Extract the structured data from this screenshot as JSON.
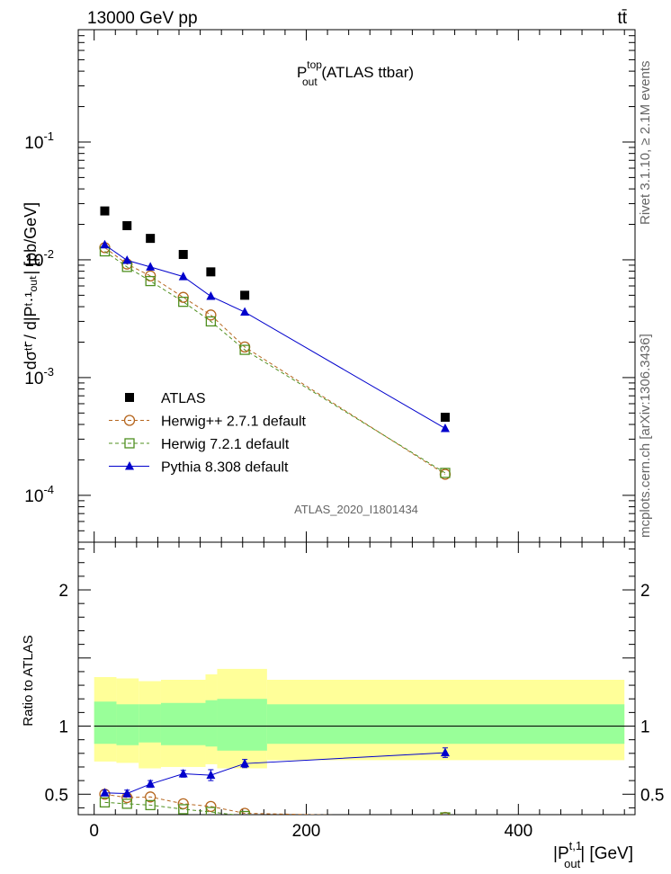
{
  "header": {
    "left": "13000 GeV pp",
    "right": "tt̄"
  },
  "side_text": {
    "rivet": "Rivet 3.1.10, ≥ 2.1M events",
    "mcplots": "mcplots.cern.ch [arXiv:1306.3436]"
  },
  "chart_data": [
    {
      "type": "scatter",
      "panel": "main",
      "title_main": "P",
      "title_sup": "top",
      "title_sub": "out",
      "title_rest": " (ATLAS ttbar)",
      "watermark": "ATLAS_2020_I1801434",
      "ylabel": "dσᵗᵗ̄ / d|Pᵗ·¹ₒᵤₜ| [pb/GeV]",
      "yscale": "log",
      "xlim": [
        -15,
        510
      ],
      "ylim": [
        4e-05,
        0.9
      ],
      "yticks": [
        {
          "v": 0.0001,
          "base": "10",
          "exp": "-4"
        },
        {
          "v": 0.001,
          "base": "10",
          "exp": "-3"
        },
        {
          "v": 0.01,
          "base": "10",
          "exp": "-2"
        },
        {
          "v": 0.1,
          "base": "10",
          "exp": "-1"
        }
      ],
      "legend_position": "lower-left",
      "series": [
        {
          "name": "ATLAS",
          "color": "#000000",
          "marker": "square",
          "x": [
            10,
            31,
            53,
            84,
            110,
            142,
            331
          ],
          "y": [
            0.026,
            0.0195,
            0.0152,
            0.0111,
            0.0079,
            0.005,
            0.00046
          ]
        },
        {
          "name": "Herwig++ 2.7.1 default",
          "color": "#b5651d",
          "marker": "open-circle",
          "dash": true,
          "x": [
            10,
            31,
            53,
            84,
            110,
            142,
            331
          ],
          "y": [
            0.0127,
            0.0092,
            0.0073,
            0.0048,
            0.0034,
            0.00182,
            0.000151
          ]
        },
        {
          "name": "Herwig 7.2.1 default",
          "color": "#4f8f1f",
          "marker": "open-square",
          "dash": true,
          "x": [
            10,
            31,
            53,
            84,
            110,
            142,
            331
          ],
          "y": [
            0.0118,
            0.0087,
            0.0066,
            0.0044,
            0.003,
            0.00172,
            0.000155
          ]
        },
        {
          "name": "Pythia 8.308 default",
          "color": "#0000cc",
          "marker": "triangle",
          "x": [
            10,
            31,
            53,
            84,
            110,
            142,
            331
          ],
          "y": [
            0.0134,
            0.0099,
            0.0087,
            0.0072,
            0.0049,
            0.0036,
            0.00037
          ]
        }
      ]
    },
    {
      "type": "scatter",
      "panel": "ratio",
      "ylabel": "Ratio to ATLAS",
      "xlabel_main": "|P",
      "xlabel_sup": "t,1",
      "xlabel_sub": "out",
      "xlabel_rest": "| [GeV]",
      "xlim": [
        -15,
        510
      ],
      "ylim": [
        0.35,
        2.35
      ],
      "xticks": [
        0,
        200,
        400
      ],
      "yticks": [
        0.5,
        1,
        2
      ],
      "bands": {
        "edges": [
          0,
          21,
          42,
          63,
          105,
          116,
          163,
          500
        ],
        "yellow_lo": [
          0.74,
          0.73,
          0.69,
          0.7,
          0.72,
          0.69,
          0.75
        ],
        "yellow_hi": [
          1.36,
          1.35,
          1.33,
          1.34,
          1.38,
          1.42,
          1.34
        ],
        "green_lo": [
          0.87,
          0.86,
          0.88,
          0.86,
          0.85,
          0.82,
          0.87
        ],
        "green_hi": [
          1.18,
          1.16,
          1.16,
          1.17,
          1.19,
          1.2,
          1.16
        ]
      },
      "series": [
        {
          "name": "Herwig++ 2.7.1 default",
          "color": "#b5651d",
          "marker": "open-circle",
          "dash": true,
          "x": [
            10,
            31,
            53,
            84,
            110,
            142,
            331
          ],
          "y": [
            0.5,
            0.475,
            0.48,
            0.43,
            0.41,
            0.36,
            0.33
          ]
        },
        {
          "name": "Herwig 7.2.1 default",
          "color": "#4f8f1f",
          "marker": "open-square",
          "dash": true,
          "x": [
            10,
            31,
            53,
            84,
            110,
            142,
            331
          ],
          "y": [
            0.44,
            0.43,
            0.42,
            0.39,
            0.37,
            0.34,
            0.33
          ]
        },
        {
          "name": "Pythia 8.308 default",
          "color": "#0000cc",
          "marker": "triangle",
          "x": [
            10,
            31,
            53,
            84,
            110,
            142,
            331
          ],
          "y": [
            0.51,
            0.505,
            0.575,
            0.65,
            0.64,
            0.725,
            0.805
          ],
          "err": [
            0.02,
            0.025,
            0.025,
            0.025,
            0.04,
            0.03,
            0.035
          ]
        }
      ]
    }
  ]
}
